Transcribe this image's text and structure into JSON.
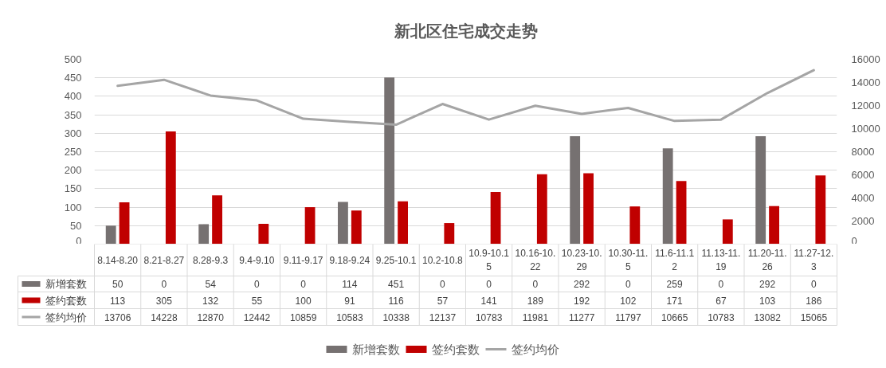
{
  "chart_data": {
    "type": "bar",
    "title": "新北区住宅成交走势",
    "categories": [
      "8.14-8.20",
      "8.21-8.27",
      "8.28-9.3",
      "9.4-9.10",
      "9.11-9.17",
      "9.18-9.24",
      "9.25-10.1",
      "10.2-10.8",
      "10.9-10.15",
      "10.16-10.22",
      "10.23-10.29",
      "10.30-11.5",
      "11.6-11.12",
      "11.13-11.19",
      "11.20-11.26",
      "11.27-12.3"
    ],
    "series": [
      {
        "name": "新增套数",
        "color": "#767171",
        "values": [
          50,
          0,
          54,
          0,
          0,
          114,
          451,
          0,
          0,
          0,
          292,
          0,
          259,
          0,
          292,
          0
        ]
      },
      {
        "name": "签约套数",
        "color": "#c00000",
        "values": [
          113,
          305,
          132,
          55,
          100,
          91,
          116,
          57,
          141,
          189,
          192,
          102,
          171,
          67,
          103,
          186
        ]
      },
      {
        "name": "签约均价",
        "type": "line",
        "axis": "y2",
        "color": "#a5a5a5",
        "values": [
          13706,
          14228,
          12870,
          12442,
          10859,
          10583,
          10338,
          12137,
          10783,
          11981,
          11277,
          11797,
          10665,
          10783,
          13082,
          15065
        ]
      }
    ],
    "ylim": [
      0,
      500
    ],
    "yticks": [
      0,
      50,
      100,
      150,
      200,
      250,
      300,
      350,
      400,
      450,
      500
    ],
    "y2lim": [
      0,
      16000
    ],
    "y2ticks": [
      0,
      2000,
      4000,
      6000,
      8000,
      10000,
      12000,
      14000,
      16000
    ],
    "grid": "y",
    "legend": "bottom",
    "data_labels": true
  }
}
